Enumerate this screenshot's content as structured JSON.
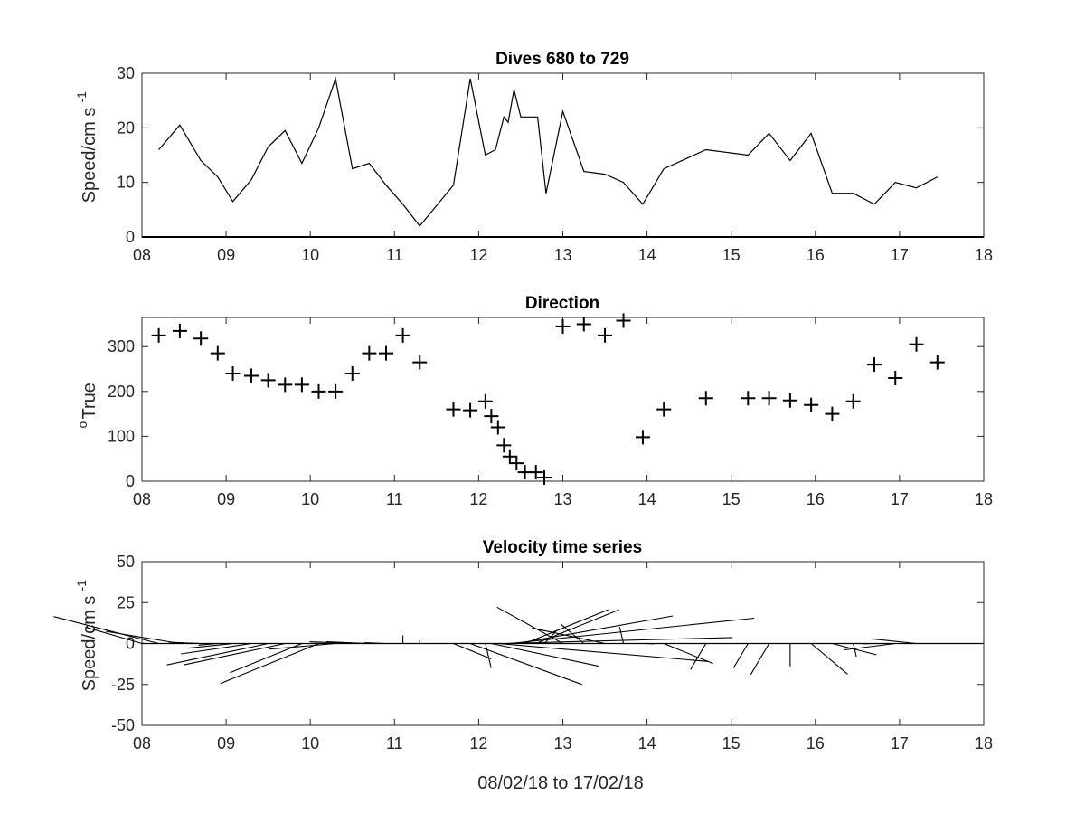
{
  "chart_data": [
    {
      "type": "line",
      "title": "Dives 680 to 729",
      "ylabel": "Speed/cm s",
      "ylabel_superscript": "-1",
      "xlabel": "",
      "xlim": [
        8,
        18
      ],
      "ylim": [
        0,
        30
      ],
      "xtick_labels": [
        "08",
        "09",
        "10",
        "11",
        "12",
        "13",
        "14",
        "15",
        "16",
        "17",
        "18"
      ],
      "ytick_labels": [
        "0",
        "10",
        "20",
        "30"
      ],
      "grid": false,
      "x": [
        8.2,
        8.45,
        8.7,
        8.9,
        9.08,
        9.3,
        9.5,
        9.7,
        9.9,
        10.1,
        10.3,
        10.5,
        10.7,
        10.9,
        11.1,
        11.3,
        11.7,
        11.9,
        12.08,
        12.2,
        12.3,
        12.35,
        12.42,
        12.5,
        12.6,
        12.7,
        12.8,
        13.0,
        13.25,
        13.5,
        13.72,
        13.95,
        14.2,
        14.7,
        15.2,
        15.45,
        15.7,
        15.95,
        16.2,
        16.45,
        16.7,
        16.95,
        17.2,
        17.45
      ],
      "y": [
        16,
        20.5,
        14,
        11,
        6.5,
        10.5,
        16.5,
        19.5,
        13.5,
        20,
        29,
        12.5,
        13.5,
        9.5,
        6,
        2,
        9.5,
        29,
        15,
        16,
        22,
        21,
        27,
        22,
        22,
        22,
        8,
        23,
        12,
        11.5,
        10,
        6,
        12.5,
        16,
        15,
        19,
        14,
        19,
        8,
        8,
        6,
        10,
        9,
        11
      ]
    },
    {
      "type": "scatter",
      "title": "Direction",
      "ylabel": "True",
      "ylabel_superscript": "o",
      "xlabel": "",
      "xlim": [
        8,
        18
      ],
      "ylim": [
        0,
        365
      ],
      "xtick_labels": [
        "08",
        "09",
        "10",
        "11",
        "12",
        "13",
        "14",
        "15",
        "16",
        "17",
        "18"
      ],
      "ytick_labels": [
        "0",
        "100",
        "200",
        "300"
      ],
      "grid": false,
      "x": [
        8.2,
        8.45,
        8.7,
        8.9,
        9.08,
        9.3,
        9.5,
        9.7,
        9.9,
        10.1,
        10.3,
        10.5,
        10.7,
        10.9,
        11.1,
        11.3,
        11.7,
        11.9,
        12.08,
        12.15,
        12.23,
        12.3,
        12.37,
        12.45,
        12.55,
        12.68,
        12.78,
        13.0,
        13.25,
        13.5,
        13.72,
        13.95,
        14.2,
        14.7,
        15.2,
        15.45,
        15.7,
        15.95,
        16.2,
        16.45,
        16.7,
        16.95,
        17.2,
        17.45
      ],
      "y": [
        325,
        335,
        318,
        285,
        240,
        235,
        225,
        215,
        215,
        200,
        200,
        240,
        285,
        285,
        325,
        265,
        160,
        158,
        178,
        145,
        120,
        80,
        55,
        40,
        20,
        20,
        8,
        345,
        350,
        325,
        358,
        98,
        160,
        185,
        185,
        185,
        180,
        170,
        150,
        178,
        260,
        230,
        305,
        265
      ]
    },
    {
      "type": "line",
      "subtype": "stick-vectors",
      "title": "Velocity time series",
      "ylabel": "Speed/cm s",
      "ylabel_superscript": "-1",
      "xlabel": "08/02/18 to 17/02/18",
      "xlim": [
        8,
        18
      ],
      "ylim": [
        -50,
        50
      ],
      "xtick_labels": [
        "08",
        "09",
        "10",
        "11",
        "12",
        "13",
        "14",
        "15",
        "16",
        "17",
        "18"
      ],
      "ytick_labels": [
        "-50",
        "-25",
        "0",
        "25",
        "50"
      ],
      "grid": false,
      "x": [
        8.0,
        8.2,
        8.45,
        8.7,
        8.9,
        9.08,
        9.3,
        9.5,
        9.7,
        9.9,
        10.1,
        10.3,
        10.5,
        10.7,
        10.9,
        11.1,
        11.3,
        11.7,
        11.9,
        12.08,
        12.15,
        12.23,
        12.3,
        12.37,
        12.45,
        12.55,
        12.68,
        12.78,
        13.0,
        13.25,
        13.5,
        13.72,
        13.95,
        14.2,
        14.7,
        15.2,
        15.45,
        15.7,
        15.95,
        16.2,
        16.45,
        16.7,
        16.95,
        17.2,
        17.45
      ],
      "speed": [
        11,
        19,
        10,
        3,
        2,
        5,
        9,
        16,
        16,
        19,
        26,
        7,
        4,
        4,
        2,
        5,
        2,
        10,
        27,
        15,
        17,
        22,
        21,
        27,
        22,
        22,
        22,
        8,
        23,
        12,
        11.5,
        10,
        1,
        13,
        16,
        15,
        19,
        14,
        19,
        8,
        8,
        1,
        6,
        5,
        0
      ],
      "direction_deg": [
        333,
        330,
        318,
        285,
        240,
        235,
        225,
        215,
        215,
        200,
        200,
        240,
        285,
        285,
        285,
        0,
        0,
        160,
        158,
        178,
        145,
        120,
        80,
        55,
        40,
        20,
        20,
        8,
        345,
        350,
        325,
        358,
        98,
        160,
        185,
        185,
        185,
        180,
        170,
        150,
        178,
        260,
        230,
        305,
        0
      ]
    }
  ]
}
